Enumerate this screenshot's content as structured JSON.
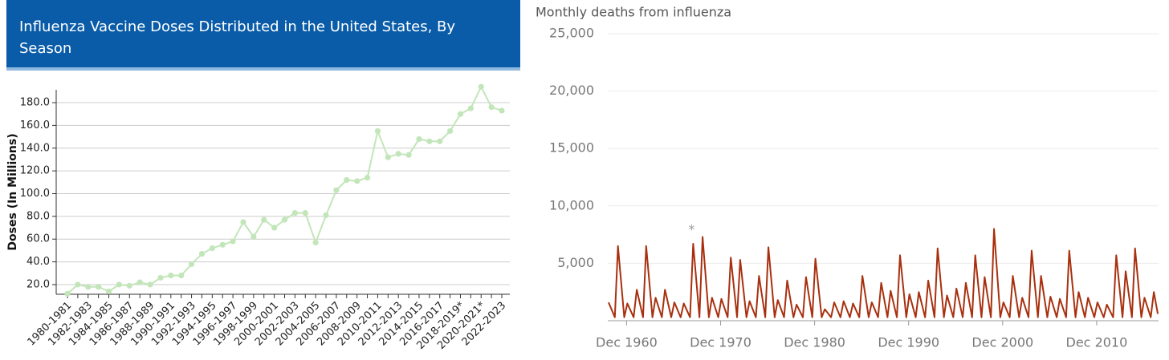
{
  "chart_data": [
    {
      "type": "line",
      "title": "Influenza Vaccine Doses Distributed in the United States, By Season",
      "ylabel": "Doses (In Millions)",
      "categories": [
        "1980-1981",
        null,
        "1982-1983",
        null,
        "1984-1985",
        null,
        "1986-1987",
        null,
        "1988-1989",
        null,
        "1990-1991",
        null,
        "1992-1993",
        null,
        "1994-1995",
        null,
        "1996-1997",
        null,
        "1998-1999",
        null,
        "2000-2001",
        null,
        "2002-2003",
        null,
        "2004-2005",
        null,
        "2006-2007",
        null,
        "2008-2009",
        null,
        "2010-2011",
        null,
        "2012-2013",
        null,
        "2014-2015",
        null,
        "2016-2017",
        null,
        "2018-2019*",
        null,
        "2020-2021*",
        null,
        "2022-2023"
      ],
      "values": [
        12,
        20,
        18,
        18,
        14,
        20,
        19,
        22,
        20,
        26,
        28,
        28,
        38,
        47,
        52,
        55,
        58,
        75,
        62,
        77,
        70,
        77,
        83,
        83,
        57,
        81,
        103,
        112,
        111,
        114,
        155,
        132,
        135,
        134,
        148,
        146,
        146,
        155,
        170,
        175,
        194,
        176,
        173
      ],
      "color": "#c2e6b9",
      "ylim": [
        11.5,
        191.3
      ],
      "yticks": [
        {
          "value": 20,
          "label": "20.0"
        },
        {
          "value": 40,
          "label": "40.0"
        },
        {
          "value": 60,
          "label": "60.0"
        },
        {
          "value": 80,
          "label": "80.0"
        },
        {
          "value": 100,
          "label": "100.0"
        },
        {
          "value": 120,
          "label": "120.0"
        },
        {
          "value": 140,
          "label": "140.0"
        },
        {
          "value": 160,
          "label": "160.0"
        },
        {
          "value": 180,
          "label": "180.0"
        }
      ],
      "grid": true
    },
    {
      "type": "line",
      "title": "Monthly deaths from influenza",
      "x": [
        "1959-01",
        "1959-09",
        "1960-01",
        "1960-09",
        "1961-01",
        "1961-09",
        "1962-01",
        "1962-09",
        "1963-01",
        "1963-09",
        "1964-01",
        "1964-09",
        "1965-01",
        "1965-09",
        "1966-01",
        "1966-09",
        "1967-01",
        "1967-09",
        "1968-01",
        "1968-09",
        "1969-01",
        "1969-09",
        "1970-01",
        "1970-09",
        "1971-01",
        "1971-09",
        "1972-01",
        "1972-09",
        "1973-01",
        "1973-09",
        "1974-01",
        "1974-09",
        "1975-01",
        "1975-09",
        "1976-01",
        "1976-09",
        "1977-01",
        "1977-09",
        "1978-01",
        "1978-09",
        "1979-01",
        "1979-09",
        "1980-01",
        "1980-09",
        "1981-01",
        "1981-09",
        "1982-01",
        "1982-09",
        "1983-01",
        "1983-09",
        "1984-01",
        "1984-09",
        "1985-01",
        "1985-09",
        "1986-01",
        "1986-09",
        "1987-01",
        "1987-09",
        "1988-01",
        "1988-09",
        "1989-01",
        "1989-09",
        "1990-01",
        "1990-09",
        "1991-01",
        "1991-09",
        "1992-01",
        "1992-09",
        "1993-01",
        "1993-09",
        "1994-01",
        "1994-09",
        "1995-01",
        "1995-09",
        "1996-01",
        "1996-09",
        "1997-01",
        "1997-09",
        "1998-01",
        "1998-09",
        "1999-01",
        "1999-09",
        "2000-01",
        "2000-09",
        "2001-01",
        "2001-09",
        "2002-01",
        "2002-09",
        "2003-01",
        "2003-09",
        "2004-01",
        "2004-09",
        "2005-01",
        "2005-09",
        "2006-01",
        "2006-09",
        "2007-01",
        "2007-09",
        "2008-01",
        "2008-09",
        "2009-01",
        "2009-09",
        "2010-01",
        "2010-09",
        "2011-01",
        "2011-09",
        "2012-01",
        "2012-09",
        "2013-01",
        "2013-09",
        "2014-01",
        "2014-09",
        "2015-01",
        "2015-09",
        "2016-01",
        "2016-09",
        "2017-01",
        "2017-06"
      ],
      "values": [
        1600,
        300,
        6500,
        300,
        1500,
        300,
        2700,
        300,
        6500,
        300,
        2000,
        300,
        2700,
        300,
        1600,
        300,
        1500,
        300,
        6700,
        300,
        7300,
        300,
        2000,
        300,
        1900,
        300,
        5500,
        300,
        5300,
        300,
        1700,
        300,
        3900,
        300,
        6400,
        300,
        1800,
        300,
        3500,
        300,
        1400,
        300,
        3800,
        300,
        5400,
        300,
        1000,
        300,
        1600,
        300,
        1700,
        300,
        1500,
        300,
        3900,
        300,
        1600,
        300,
        3300,
        300,
        2600,
        300,
        5700,
        300,
        2300,
        300,
        2500,
        300,
        3500,
        300,
        6300,
        300,
        2200,
        300,
        2800,
        300,
        3300,
        300,
        5700,
        300,
        3800,
        300,
        8000,
        300,
        1600,
        300,
        3900,
        300,
        2000,
        300,
        6100,
        300,
        3900,
        300,
        2100,
        300,
        1900,
        300,
        6100,
        300,
        2500,
        300,
        2000,
        300,
        1600,
        300,
        1400,
        300,
        5700,
        300,
        4300,
        300,
        6300,
        300,
        2000,
        300,
        2500,
        600
      ],
      "color": "#a8300f",
      "xlim": [
        "1958-12",
        "2017-07"
      ],
      "xticks": [
        {
          "value": "1960-12",
          "label": "Dec 1960"
        },
        {
          "value": "1970-12",
          "label": "Dec 1970"
        },
        {
          "value": "1980-12",
          "label": "Dec 1980"
        },
        {
          "value": "1990-12",
          "label": "Dec 1990"
        },
        {
          "value": "2000-12",
          "label": "Dec 2000"
        },
        {
          "value": "2010-12",
          "label": "Dec 2010"
        }
      ],
      "ylim": [
        0,
        25000
      ],
      "yticks": [
        {
          "value": 5000,
          "label": "5,000"
        },
        {
          "value": 10000,
          "label": "10,000"
        },
        {
          "value": 15000,
          "label": "15,000"
        },
        {
          "value": 20000,
          "label": "20,000"
        },
        {
          "value": 25000,
          "label": "25,000"
        }
      ],
      "grid": true,
      "annotations": [
        {
          "text": "*",
          "x": "1967-11",
          "y": 7900
        }
      ]
    }
  ]
}
